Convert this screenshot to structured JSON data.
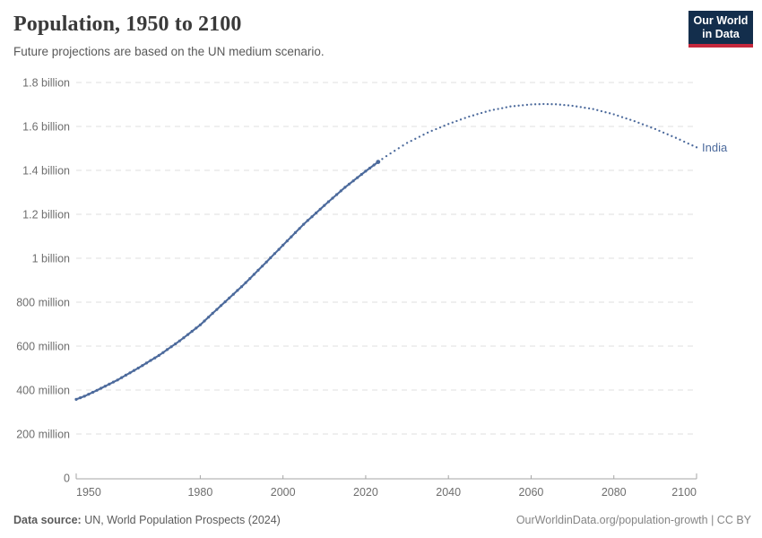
{
  "header": {
    "title": "Population, 1950 to 2100",
    "subtitle": "Future projections are based on the UN medium scenario.",
    "logo": {
      "line1": "Our World",
      "line2": "in Data",
      "bg_color": "#132e4c",
      "accent_color": "#c5283c"
    }
  },
  "chart_data": {
    "type": "line",
    "title": "Population, 1950 to 2100",
    "entity": "India",
    "unit": "people",
    "series_color": "#4c6a9c",
    "gridline_color": "#dfdfdf",
    "axis_color": "#a5a5a5",
    "tick_label_color": "#6e6e6e",
    "x_range": [
      1950,
      2100
    ],
    "y_range_millions": [
      0,
      1800
    ],
    "x_ticks": [
      1950,
      1980,
      2000,
      2020,
      2040,
      2060,
      2080,
      2100
    ],
    "y_ticks": [
      {
        "value_millions": 0,
        "label": "0"
      },
      {
        "value_millions": 200,
        "label": "200 million"
      },
      {
        "value_millions": 400,
        "label": "400 million"
      },
      {
        "value_millions": 600,
        "label": "600 million"
      },
      {
        "value_millions": 800,
        "label": "800 million"
      },
      {
        "value_millions": 1000,
        "label": "1 billion"
      },
      {
        "value_millions": 1200,
        "label": "1.2 billion"
      },
      {
        "value_millions": 1400,
        "label": "1.4 billion"
      },
      {
        "value_millions": 1600,
        "label": "1.6 billion"
      },
      {
        "value_millions": 1800,
        "label": "1.8 billion"
      }
    ],
    "series": [
      {
        "name": "India",
        "label": "India",
        "historical_style": "solid-dotted",
        "projection_style": "dotted",
        "historical_anchors_millions": [
          [
            1950,
            357.6
          ],
          [
            1952,
            372.0
          ],
          [
            1955,
            398.6
          ],
          [
            1960,
            445.9
          ],
          [
            1965,
            500.1
          ],
          [
            1970,
            557.5
          ],
          [
            1975,
            623.5
          ],
          [
            1980,
            696.8
          ],
          [
            1985,
            784.4
          ],
          [
            1990,
            870.5
          ],
          [
            1995,
            963.9
          ],
          [
            2000,
            1059.6
          ],
          [
            2005,
            1154.6
          ],
          [
            2010,
            1240.6
          ],
          [
            2015,
            1322.9
          ],
          [
            2020,
            1396.4
          ],
          [
            2023,
            1438.3
          ]
        ],
        "projection_anchors_millions": [
          [
            2023,
            1438.3
          ],
          [
            2025,
            1465
          ],
          [
            2030,
            1525
          ],
          [
            2035,
            1572
          ],
          [
            2040,
            1611
          ],
          [
            2045,
            1645
          ],
          [
            2050,
            1672
          ],
          [
            2055,
            1691
          ],
          [
            2060,
            1700
          ],
          [
            2063,
            1702
          ],
          [
            2066,
            1701
          ],
          [
            2070,
            1694
          ],
          [
            2075,
            1679
          ],
          [
            2080,
            1655
          ],
          [
            2085,
            1624
          ],
          [
            2090,
            1588
          ],
          [
            2095,
            1548
          ],
          [
            2100,
            1505
          ]
        ]
      }
    ]
  },
  "footer": {
    "source_label": "Data source:",
    "source_text": "UN, World Population Prospects (2024)",
    "link_text": "OurWorldinData.org/population-growth | CC BY"
  }
}
